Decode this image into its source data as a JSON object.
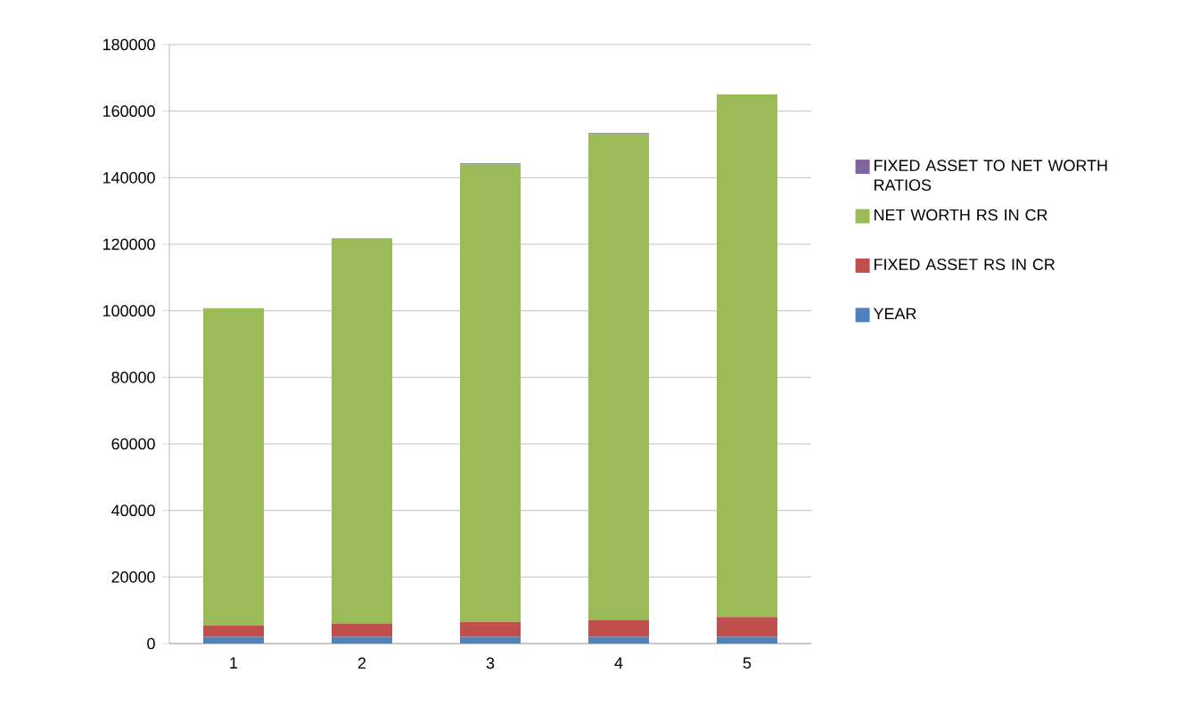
{
  "chart_data": {
    "type": "bar",
    "stacked": true,
    "categories": [
      "1",
      "2",
      "3",
      "4",
      "5"
    ],
    "series": [
      {
        "name": "YEAR",
        "color": "#4f81bd",
        "values": [
          2000,
          2000,
          2000,
          2000,
          2000
        ]
      },
      {
        "name": "FIXED ASSET RS IN CR",
        "color": "#c0504d",
        "values": [
          3500,
          4000,
          4400,
          5100,
          6000
        ]
      },
      {
        "name": "NET WORTH RS IN CR",
        "color": "#9bbb59",
        "values": [
          95300,
          115800,
          137600,
          146000,
          157000
        ]
      },
      {
        "name": "FIXED ASSET TO NET WORTH RATIOS",
        "color": "#8064a2",
        "values": [
          0,
          0,
          300,
          300,
          0
        ]
      }
    ],
    "ylim": [
      0,
      180000
    ],
    "yticks": [
      0,
      20000,
      40000,
      60000,
      80000,
      100000,
      120000,
      140000,
      160000,
      180000
    ],
    "grid": "y",
    "legend": "right"
  }
}
